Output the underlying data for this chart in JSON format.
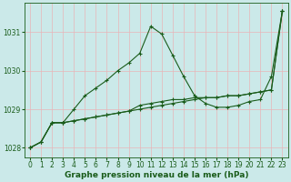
{
  "xlabel": "Graphe pression niveau de la mer (hPa)",
  "bg_color": "#cbe9e9",
  "grid_color": "#e8b4b8",
  "line_color": "#1a5c1a",
  "ylim": [
    1027.75,
    1031.75
  ],
  "xlim": [
    -0.5,
    23.5
  ],
  "yticks": [
    1028,
    1029,
    1030,
    1031
  ],
  "xticks": [
    0,
    1,
    2,
    3,
    4,
    5,
    6,
    7,
    8,
    9,
    10,
    11,
    12,
    13,
    14,
    15,
    16,
    17,
    18,
    19,
    20,
    21,
    22,
    23
  ],
  "series1_x": [
    0,
    1,
    2,
    3,
    4,
    5,
    6,
    7,
    8,
    9,
    10,
    11,
    12,
    13,
    14,
    15,
    16,
    17,
    18,
    19,
    20,
    21,
    22,
    23
  ],
  "series1_y": [
    1028.0,
    1028.15,
    1028.65,
    1028.65,
    1028.7,
    1028.75,
    1028.8,
    1028.85,
    1028.9,
    1028.95,
    1029.0,
    1029.05,
    1029.1,
    1029.15,
    1029.2,
    1029.25,
    1029.3,
    1029.3,
    1029.35,
    1029.35,
    1029.4,
    1029.45,
    1029.5,
    1031.55
  ],
  "series2_x": [
    0,
    1,
    2,
    3,
    4,
    5,
    6,
    7,
    8,
    9,
    10,
    11,
    12,
    13,
    14,
    15,
    16,
    17,
    18,
    19,
    20,
    21,
    22,
    23
  ],
  "series2_y": [
    1028.0,
    1028.15,
    1028.65,
    1028.65,
    1029.0,
    1029.35,
    1029.55,
    1029.75,
    1030.0,
    1030.2,
    1030.45,
    1031.15,
    1030.95,
    1030.4,
    1029.85,
    1029.35,
    1029.15,
    1029.05,
    1029.05,
    1029.1,
    1029.2,
    1029.25,
    1029.85,
    1031.55
  ],
  "series3_x": [
    0,
    1,
    2,
    3,
    4,
    5,
    6,
    7,
    8,
    9,
    10,
    11,
    12,
    13,
    14,
    15,
    16,
    17,
    18,
    19,
    20,
    21,
    22,
    23
  ],
  "series3_y": [
    1028.0,
    1028.15,
    1028.65,
    1028.65,
    1028.7,
    1028.75,
    1028.8,
    1028.85,
    1028.9,
    1028.95,
    1029.1,
    1029.15,
    1029.2,
    1029.25,
    1029.25,
    1029.3,
    1029.3,
    1029.3,
    1029.35,
    1029.35,
    1029.4,
    1029.45,
    1029.5,
    1031.55
  ],
  "tick_fontsize": 5.5,
  "label_fontsize": 6.5
}
